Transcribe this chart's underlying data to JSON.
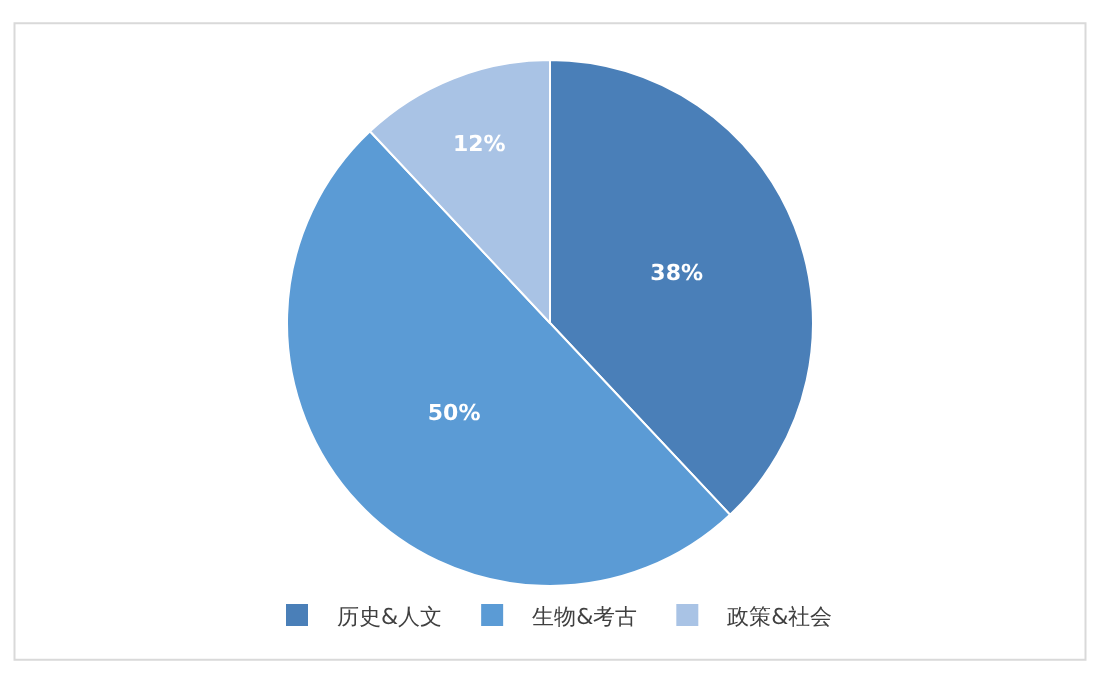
{
  "chart_data": {
    "type": "pie",
    "categories": [
      "历史&人文",
      "生物&考古",
      "政策&社会"
    ],
    "values": [
      38,
      50,
      12
    ],
    "colors": [
      "#4a7fb8",
      "#5b9bd5",
      "#a9c3e5"
    ],
    "value_labels": [
      "38%",
      "50%",
      "12%"
    ],
    "legend": "bottom"
  }
}
